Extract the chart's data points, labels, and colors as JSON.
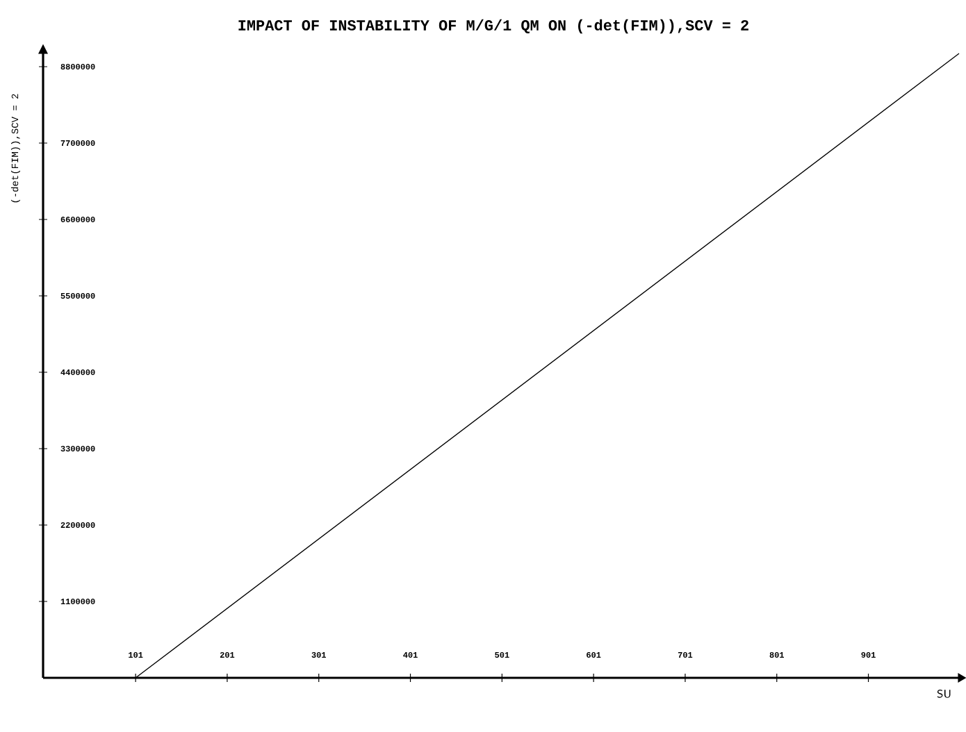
{
  "chart_data": {
    "type": "line",
    "title": "IMPACT OF INSTABILITY OF M/G/1 QM ON (-det(FIM)),SCV = 2",
    "xlabel": "SU",
    "ylabel": "(-det(FIM)),SCV = 2",
    "x": [
      61,
      101,
      1000
    ],
    "series": [
      {
        "color": "#000000",
        "values": [
          0,
          0,
          8990000
        ]
      }
    ],
    "xlim": [
      0,
      1000
    ],
    "ylim": [
      0,
      9000000
    ],
    "xticks": [
      101,
      201,
      301,
      401,
      501,
      601,
      701,
      801,
      901
    ],
    "yticks": [
      1100000,
      2200000,
      3300000,
      4400000,
      5500000,
      6600000,
      7700000,
      8800000
    ]
  }
}
